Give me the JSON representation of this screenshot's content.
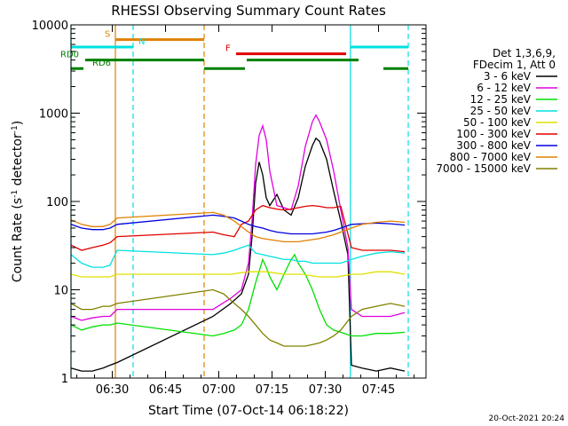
{
  "chart_data": {
    "type": "line",
    "title": "RHESSI Observing Summary Count Rates",
    "xlabel": "Start Time (07-Oct-14 06:18:22)",
    "ylabel_main": "Count Rate (s",
    "ylabel_sup1": "-1",
    "ylabel_mid": " detector",
    "ylabel_sup2": "-1",
    "ylabel_end": ")",
    "yscale": "log",
    "ylim": [
      1,
      10000
    ],
    "xlim_minutes": [
      0,
      100
    ],
    "x_ticks": [
      {
        "label": "06:30",
        "min": 11.63
      },
      {
        "label": "06:45",
        "min": 26.63
      },
      {
        "label": "07:00",
        "min": 41.63
      },
      {
        "label": "07:15",
        "min": 56.63
      },
      {
        "label": "07:30",
        "min": 71.63
      },
      {
        "label": "07:45",
        "min": 86.63
      }
    ],
    "y_ticks": [
      {
        "label": "1",
        "v": 1
      },
      {
        "label": "10",
        "v": 10
      },
      {
        "label": "100",
        "v": 100
      },
      {
        "label": "1000",
        "v": 1000
      },
      {
        "label": "10000",
        "v": 10000
      }
    ],
    "legend_header": [
      "Det 1,3,6,9,",
      "FDecim 1, Att 0"
    ],
    "series": [
      {
        "name": "3 - 6 keV",
        "color": "#000000",
        "points": [
          [
            0,
            1.3
          ],
          [
            3,
            1.2
          ],
          [
            6,
            1.2
          ],
          [
            9,
            1.3
          ],
          [
            11,
            1.4
          ],
          [
            13,
            1.5
          ],
          [
            40,
            5
          ],
          [
            45,
            7
          ],
          [
            48,
            9
          ],
          [
            50,
            15
          ],
          [
            51,
            40
          ],
          [
            52,
            160
          ],
          [
            53,
            280
          ],
          [
            54,
            200
          ],
          [
            55,
            110
          ],
          [
            56,
            90
          ],
          [
            58,
            120
          ],
          [
            60,
            80
          ],
          [
            62,
            70
          ],
          [
            64,
            110
          ],
          [
            66,
            250
          ],
          [
            68,
            430
          ],
          [
            69,
            520
          ],
          [
            70,
            480
          ],
          [
            72,
            300
          ],
          [
            74,
            130
          ],
          [
            76,
            60
          ],
          [
            78,
            25
          ],
          [
            79,
            1.4
          ],
          [
            82,
            1.3
          ],
          [
            86,
            1.2
          ],
          [
            90,
            1.3
          ],
          [
            94,
            1.2
          ]
        ]
      },
      {
        "name": "6 - 12 keV",
        "color": "#e000e0",
        "points": [
          [
            0,
            5
          ],
          [
            3,
            4.5
          ],
          [
            6,
            4.8
          ],
          [
            9,
            5
          ],
          [
            11,
            5
          ],
          [
            13,
            6
          ],
          [
            40,
            6
          ],
          [
            45,
            8
          ],
          [
            48,
            10
          ],
          [
            50,
            20
          ],
          [
            51,
            60
          ],
          [
            52,
            260
          ],
          [
            53,
            560
          ],
          [
            54,
            720
          ],
          [
            55,
            500
          ],
          [
            56,
            220
          ],
          [
            58,
            90
          ],
          [
            60,
            85
          ],
          [
            62,
            80
          ],
          [
            64,
            150
          ],
          [
            66,
            420
          ],
          [
            68,
            800
          ],
          [
            69,
            950
          ],
          [
            70,
            800
          ],
          [
            72,
            500
          ],
          [
            74,
            220
          ],
          [
            76,
            80
          ],
          [
            78,
            30
          ],
          [
            79,
            6
          ],
          [
            82,
            5
          ],
          [
            86,
            5
          ],
          [
            90,
            5
          ],
          [
            94,
            5.5
          ]
        ]
      },
      {
        "name": "12 - 25 keV",
        "color": "#00e000",
        "points": [
          [
            0,
            4
          ],
          [
            3,
            3.5
          ],
          [
            6,
            3.8
          ],
          [
            9,
            4
          ],
          [
            11,
            4
          ],
          [
            13,
            4.2
          ],
          [
            40,
            3
          ],
          [
            43,
            3.2
          ],
          [
            46,
            3.5
          ],
          [
            48,
            4
          ],
          [
            50,
            6
          ],
          [
            52,
            12
          ],
          [
            54,
            22
          ],
          [
            55,
            18
          ],
          [
            56,
            14
          ],
          [
            58,
            10
          ],
          [
            60,
            15
          ],
          [
            62,
            22
          ],
          [
            63,
            25
          ],
          [
            64,
            20
          ],
          [
            66,
            15
          ],
          [
            68,
            10
          ],
          [
            70,
            6
          ],
          [
            72,
            4
          ],
          [
            74,
            3.5
          ],
          [
            76,
            3.3
          ],
          [
            79,
            3
          ],
          [
            82,
            3
          ],
          [
            86,
            3.2
          ],
          [
            90,
            3.2
          ],
          [
            94,
            3.3
          ]
        ]
      },
      {
        "name": "25 - 50 keV",
        "color": "#00e0e0",
        "points": [
          [
            0,
            25
          ],
          [
            3,
            20
          ],
          [
            6,
            18
          ],
          [
            9,
            18
          ],
          [
            11,
            19
          ],
          [
            13,
            28
          ],
          [
            40,
            25
          ],
          [
            43,
            26
          ],
          [
            46,
            28
          ],
          [
            48,
            30
          ],
          [
            50,
            32
          ],
          [
            52,
            26
          ],
          [
            54,
            25
          ],
          [
            56,
            24
          ],
          [
            58,
            23
          ],
          [
            60,
            22
          ],
          [
            62,
            22
          ],
          [
            64,
            21
          ],
          [
            66,
            21
          ],
          [
            68,
            20
          ],
          [
            70,
            20
          ],
          [
            72,
            20
          ],
          [
            74,
            20
          ],
          [
            76,
            20
          ],
          [
            79,
            22
          ],
          [
            82,
            24
          ],
          [
            86,
            26
          ],
          [
            90,
            27
          ],
          [
            94,
            26
          ]
        ]
      },
      {
        "name": "50 - 100 keV",
        "color": "#e0e000",
        "points": [
          [
            0,
            15
          ],
          [
            3,
            14
          ],
          [
            6,
            14
          ],
          [
            9,
            14
          ],
          [
            11,
            14
          ],
          [
            13,
            15
          ],
          [
            40,
            15
          ],
          [
            45,
            15
          ],
          [
            50,
            16
          ],
          [
            55,
            16
          ],
          [
            60,
            15
          ],
          [
            65,
            15
          ],
          [
            70,
            14
          ],
          [
            75,
            14
          ],
          [
            79,
            15
          ],
          [
            82,
            15
          ],
          [
            86,
            16
          ],
          [
            90,
            16
          ],
          [
            94,
            15
          ]
        ]
      },
      {
        "name": "100 - 300 keV",
        "color": "#e00000",
        "points": [
          [
            0,
            32
          ],
          [
            3,
            28
          ],
          [
            6,
            30
          ],
          [
            9,
            32
          ],
          [
            11,
            34
          ],
          [
            13,
            40
          ],
          [
            40,
            45
          ],
          [
            43,
            42
          ],
          [
            46,
            40
          ],
          [
            48,
            55
          ],
          [
            50,
            60
          ],
          [
            52,
            80
          ],
          [
            54,
            90
          ],
          [
            56,
            85
          ],
          [
            58,
            82
          ],
          [
            60,
            80
          ],
          [
            62,
            82
          ],
          [
            64,
            85
          ],
          [
            66,
            88
          ],
          [
            68,
            90
          ],
          [
            70,
            88
          ],
          [
            72,
            85
          ],
          [
            74,
            85
          ],
          [
            76,
            88
          ],
          [
            79,
            30
          ],
          [
            82,
            28
          ],
          [
            86,
            28
          ],
          [
            90,
            28
          ],
          [
            94,
            27
          ]
        ]
      },
      {
        "name": "300 - 800 keV",
        "color": "#0000e0",
        "points": [
          [
            0,
            55
          ],
          [
            3,
            50
          ],
          [
            6,
            48
          ],
          [
            9,
            48
          ],
          [
            11,
            50
          ],
          [
            13,
            55
          ],
          [
            40,
            70
          ],
          [
            43,
            68
          ],
          [
            46,
            65
          ],
          [
            48,
            60
          ],
          [
            50,
            55
          ],
          [
            52,
            52
          ],
          [
            54,
            50
          ],
          [
            56,
            47
          ],
          [
            58,
            45
          ],
          [
            60,
            44
          ],
          [
            62,
            43
          ],
          [
            64,
            43
          ],
          [
            66,
            43
          ],
          [
            68,
            43
          ],
          [
            70,
            44
          ],
          [
            72,
            45
          ],
          [
            74,
            47
          ],
          [
            76,
            50
          ],
          [
            79,
            55
          ],
          [
            82,
            56
          ],
          [
            86,
            57
          ],
          [
            90,
            56
          ],
          [
            94,
            54
          ]
        ]
      },
      {
        "name": "800 - 7000 keV",
        "color": "#e08000",
        "points": [
          [
            0,
            62
          ],
          [
            3,
            55
          ],
          [
            6,
            52
          ],
          [
            9,
            52
          ],
          [
            11,
            55
          ],
          [
            13,
            65
          ],
          [
            40,
            75
          ],
          [
            43,
            70
          ],
          [
            46,
            60
          ],
          [
            48,
            52
          ],
          [
            50,
            45
          ],
          [
            52,
            40
          ],
          [
            54,
            38
          ],
          [
            56,
            37
          ],
          [
            58,
            36
          ],
          [
            60,
            35
          ],
          [
            62,
            35
          ],
          [
            64,
            35
          ],
          [
            66,
            36
          ],
          [
            68,
            37
          ],
          [
            70,
            38
          ],
          [
            72,
            40
          ],
          [
            74,
            42
          ],
          [
            76,
            45
          ],
          [
            79,
            50
          ],
          [
            82,
            55
          ],
          [
            86,
            58
          ],
          [
            90,
            60
          ],
          [
            94,
            58
          ]
        ]
      },
      {
        "name": "7000 - 15000 keV",
        "color": "#808000",
        "points": [
          [
            0,
            7
          ],
          [
            3,
            6
          ],
          [
            6,
            6
          ],
          [
            9,
            6.5
          ],
          [
            11,
            6.5
          ],
          [
            13,
            7
          ],
          [
            40,
            10
          ],
          [
            43,
            9
          ],
          [
            46,
            7
          ],
          [
            48,
            6
          ],
          [
            50,
            5
          ],
          [
            52,
            4
          ],
          [
            54,
            3.2
          ],
          [
            56,
            2.7
          ],
          [
            58,
            2.5
          ],
          [
            60,
            2.3
          ],
          [
            62,
            2.3
          ],
          [
            64,
            2.3
          ],
          [
            66,
            2.3
          ],
          [
            68,
            2.4
          ],
          [
            70,
            2.5
          ],
          [
            72,
            2.7
          ],
          [
            74,
            3
          ],
          [
            76,
            3.5
          ],
          [
            79,
            5
          ],
          [
            82,
            6
          ],
          [
            86,
            6.5
          ],
          [
            90,
            7
          ],
          [
            94,
            6.5
          ]
        ]
      }
    ],
    "flags": [
      {
        "label": "S",
        "color": "#e08000",
        "level": 6800,
        "ranges": [
          [
            12.5,
            37.5
          ]
        ],
        "label_at": 9.5
      },
      {
        "label": "N",
        "color": "#00e0e0",
        "level": 5600,
        "ranges": [
          [
            0,
            17.5
          ],
          [
            78.7,
            95
          ]
        ],
        "label_at": 19
      },
      {
        "label": "F",
        "color": "#e00000",
        "level": 4700,
        "ranges": [
          [
            46.5,
            77.5
          ]
        ],
        "label_at": 43.5
      },
      {
        "label": "RD0",
        "color": "#008000",
        "level": 4000,
        "ranges": [
          [
            4,
            37.5
          ],
          [
            49.5,
            81
          ]
        ],
        "label_at": -3
      },
      {
        "label": "RD6",
        "color": "#008000",
        "level": 3200,
        "ranges": [
          [
            0,
            3.5
          ],
          [
            37.5,
            49
          ],
          [
            88,
            95
          ]
        ],
        "label_at": 6
      }
    ],
    "vlines": [
      {
        "min": 0,
        "color": "#00e0e0",
        "style": "solid"
      },
      {
        "min": 12.5,
        "color": "#e08000",
        "style": "solid"
      },
      {
        "min": 17.5,
        "color": "#00e0e0",
        "style": "dashed"
      },
      {
        "min": 37.5,
        "color": "#e08000",
        "style": "dashed"
      },
      {
        "min": 78.7,
        "color": "#00e0e0",
        "style": "solid"
      },
      {
        "min": 95,
        "color": "#00e0e0",
        "style": "dashed"
      }
    ],
    "timestamp": "20-Oct-2021 20:24"
  }
}
